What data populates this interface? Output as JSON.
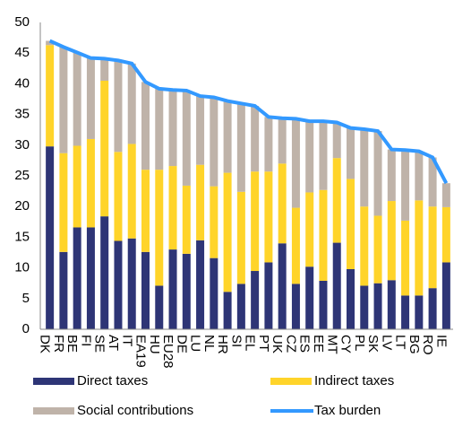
{
  "chart_data": {
    "type": "stacked-bar-line",
    "categories": [
      "DK",
      "FR",
      "BE",
      "FI",
      "SE",
      "AT",
      "IT",
      "EA19",
      "HU",
      "EU28",
      "DE",
      "LU",
      "NL",
      "HR",
      "SI",
      "EL",
      "PT",
      "UK",
      "CZ",
      "ES",
      "EE",
      "MT",
      "CY",
      "PL",
      "SK",
      "LV",
      "LT",
      "BG",
      "RO",
      "IE"
    ],
    "series": [
      {
        "name": "Direct taxes",
        "color": "#2e3576",
        "kind": "bar",
        "values": [
          29.8,
          12.6,
          16.6,
          16.6,
          18.4,
          14.4,
          14.8,
          12.6,
          7.1,
          13.0,
          12.3,
          14.5,
          11.6,
          6.1,
          7.4,
          9.5,
          10.9,
          14.0,
          7.4,
          10.2,
          7.9,
          14.1,
          9.8,
          7.1,
          7.5,
          8.0,
          5.5,
          5.5,
          6.7,
          10.9
        ]
      },
      {
        "name": "Indirect taxes",
        "color": "#ffd42a",
        "kind": "bar",
        "values": [
          16.5,
          16.1,
          13.3,
          14.4,
          22.1,
          14.5,
          15.4,
          13.4,
          18.9,
          13.6,
          11.1,
          12.3,
          11.7,
          19.4,
          15.0,
          16.2,
          14.8,
          13.0,
          12.4,
          12.1,
          14.8,
          13.8,
          14.7,
          12.9,
          11.0,
          12.9,
          12.2,
          15.5,
          13.3,
          9.0
        ]
      },
      {
        "name": "Social contributions",
        "color": "#bfb3a9",
        "kind": "bar",
        "values": [
          0.7,
          17.3,
          15.2,
          13.2,
          3.6,
          14.9,
          13.1,
          14.3,
          13.2,
          12.4,
          15.5,
          11.2,
          14.5,
          11.7,
          14.4,
          10.7,
          8.9,
          7.4,
          14.5,
          11.6,
          11.2,
          5.8,
          8.3,
          12.6,
          13.8,
          8.4,
          11.5,
          8.0,
          8.0,
          3.9
        ]
      },
      {
        "name": "Tax burden",
        "color": "#3399ff",
        "kind": "line",
        "values": [
          47.0,
          46.0,
          45.1,
          44.2,
          44.1,
          43.8,
          43.3,
          40.3,
          39.2,
          39.0,
          38.9,
          38.0,
          37.8,
          37.2,
          36.8,
          36.4,
          34.6,
          34.4,
          34.3,
          33.9,
          33.9,
          33.7,
          32.8,
          32.6,
          32.3,
          29.3,
          29.2,
          29.0,
          28.0,
          23.8
        ]
      }
    ],
    "ylim": [
      0,
      50
    ],
    "yticks": [
      0,
      5,
      10,
      15,
      20,
      25,
      30,
      35,
      40,
      45,
      50
    ],
    "grid": false
  }
}
